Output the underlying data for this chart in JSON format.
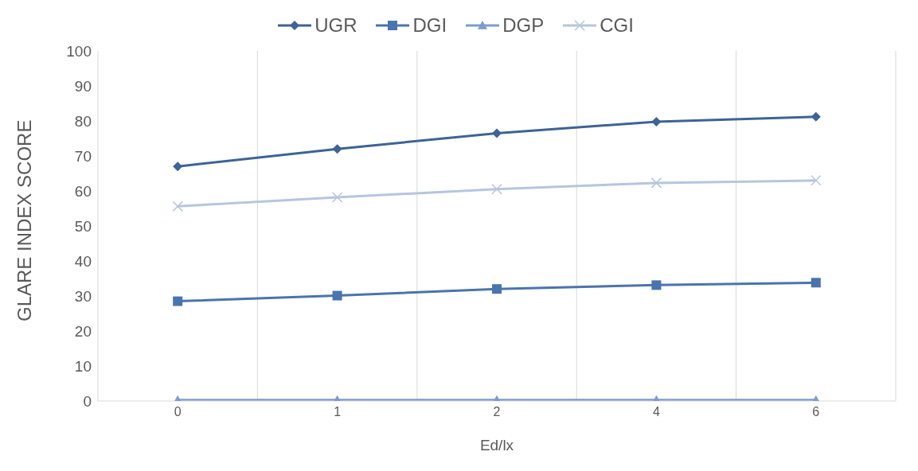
{
  "chart_data": {
    "type": "line",
    "xlabel": "Ed/lx",
    "ylabel": "GLARE INDEX SCORE",
    "categories": [
      "0",
      "1",
      "2",
      "4",
      "6"
    ],
    "series": [
      {
        "name": "UGR",
        "color": "#3e6396",
        "marker": "diamond",
        "values": [
          67,
          72,
          76.5,
          79.8,
          81.2
        ]
      },
      {
        "name": "DGI",
        "color": "#4a74ad",
        "marker": "square",
        "values": [
          28.5,
          30.1,
          32,
          33.1,
          33.8
        ]
      },
      {
        "name": "DGP",
        "color": "#7f9bcb",
        "marker": "triangle",
        "values": [
          0.3,
          0.3,
          0.3,
          0.3,
          0.3
        ]
      },
      {
        "name": "CGI",
        "color": "#b7c5df",
        "marker": "cross",
        "values": [
          55.6,
          58.2,
          60.5,
          62.3,
          63
        ]
      }
    ],
    "ylim": [
      0,
      100
    ],
    "yticks": [
      0,
      10,
      20,
      30,
      40,
      50,
      60,
      70,
      80,
      90,
      100
    ],
    "grid": "x",
    "legend": "top",
    "line_style": "solid"
  }
}
